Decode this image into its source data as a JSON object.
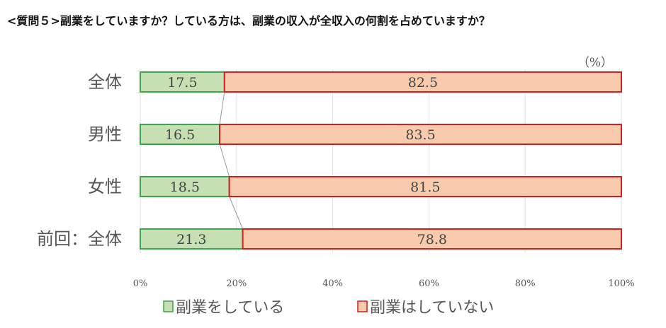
{
  "chart_data": {
    "type": "bar",
    "stacked": true,
    "orientation": "horizontal",
    "title": "<質問５>副業をしていますか？している方は、副業の収入が全収入の何割を占めていますか？",
    "unit_label": "（%）",
    "categories": [
      "全体",
      "男性",
      "女性",
      "前回：全体"
    ],
    "series": [
      {
        "name": "副業をしている",
        "values": [
          17.5,
          16.5,
          18.5,
          21.3
        ],
        "fill": "#c6e0b4",
        "stroke": "#3aa549"
      },
      {
        "name": "副業はしていない",
        "values": [
          82.5,
          83.5,
          81.5,
          78.8
        ],
        "fill": "#f8cbad",
        "stroke": "#d21f1f"
      }
    ],
    "xlim": [
      0,
      100
    ],
    "xticks": [
      "0%",
      "20%",
      "40%",
      "60%",
      "80%",
      "100%"
    ],
    "grid": true,
    "legend": "bottom"
  }
}
